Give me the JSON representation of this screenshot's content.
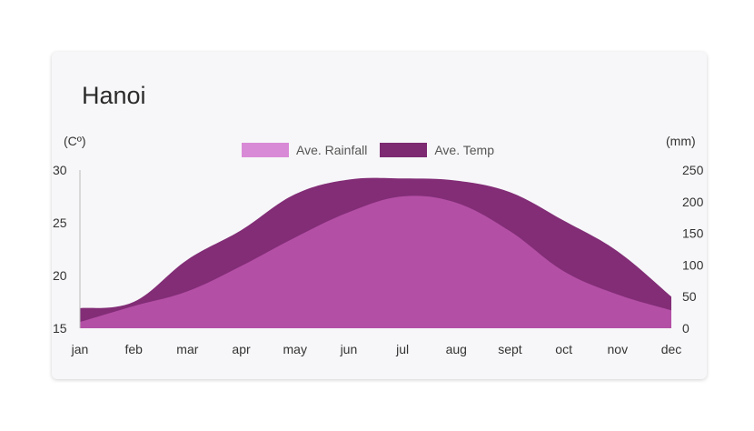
{
  "card": {
    "title": "Hanoi"
  },
  "chart_data": {
    "type": "area",
    "left_unit": "(Cº)",
    "right_unit": "(mm)",
    "categories": [
      "jan",
      "feb",
      "mar",
      "apr",
      "may",
      "jun",
      "jul",
      "aug",
      "sept",
      "oct",
      "nov",
      "dec"
    ],
    "left_axis": {
      "ticks": [
        30,
        25,
        20,
        15
      ],
      "range": [
        15,
        30
      ]
    },
    "right_axis": {
      "ticks": [
        250,
        200,
        150,
        100,
        50,
        0
      ],
      "range": [
        0,
        250
      ]
    },
    "series": [
      {
        "name": "Ave. Rainfall",
        "color": "#d98ad6",
        "fill": "#b44fa6",
        "axis": "left",
        "values": [
          15.6,
          17.1,
          18.5,
          20.9,
          23.6,
          26.0,
          27.5,
          26.9,
          24.2,
          20.4,
          18.2,
          16.7
        ]
      },
      {
        "name": "Ave. Temp",
        "color": "#7d2a72",
        "fill": "#822d76",
        "axis": "left",
        "values": [
          16.9,
          17.5,
          21.5,
          24.3,
          27.7,
          29.1,
          29.2,
          29.0,
          27.9,
          25.2,
          22.3,
          18.0
        ]
      }
    ]
  }
}
